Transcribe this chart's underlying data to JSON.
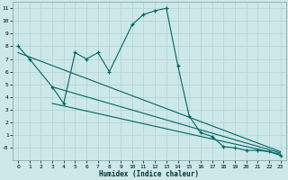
{
  "xlabel": "Humidex (Indice chaleur)",
  "bg_color": "#cde8e8",
  "grid_color": "#b8d4d4",
  "line_color": "#006666",
  "xlim": [
    -0.5,
    23.5
  ],
  "ylim": [
    -1.0,
    11.5
  ],
  "xticks": [
    0,
    1,
    2,
    3,
    4,
    5,
    6,
    7,
    8,
    9,
    10,
    11,
    12,
    13,
    14,
    15,
    16,
    17,
    18,
    19,
    20,
    21,
    22,
    23
  ],
  "yticks": [
    0,
    1,
    2,
    3,
    4,
    5,
    6,
    7,
    8,
    9,
    10,
    11
  ],
  "ytick_labels": [
    "-0",
    "1",
    "2",
    "3",
    "4",
    "5",
    "6",
    "7",
    "8",
    "9",
    "10",
    "11"
  ],
  "series1_x": [
    0,
    1,
    3,
    4,
    5,
    6,
    7,
    8,
    10,
    11,
    12,
    13,
    14,
    15,
    16,
    17,
    18,
    19,
    20,
    21,
    22,
    23
  ],
  "series1_y": [
    8.0,
    7.0,
    4.8,
    3.5,
    7.5,
    7.0,
    7.5,
    6.0,
    9.7,
    10.5,
    10.8,
    11.0,
    6.5,
    2.5,
    1.2,
    0.9,
    0.1,
    0.0,
    -0.2,
    -0.2,
    -0.3,
    -0.6
  ],
  "series2_x": [
    0,
    23
  ],
  "series2_y": [
    7.5,
    -0.3
  ],
  "series3_x": [
    3,
    23
  ],
  "series3_y": [
    4.8,
    -0.4
  ],
  "series4_x": [
    3,
    23
  ],
  "series4_y": [
    3.5,
    -0.5
  ]
}
